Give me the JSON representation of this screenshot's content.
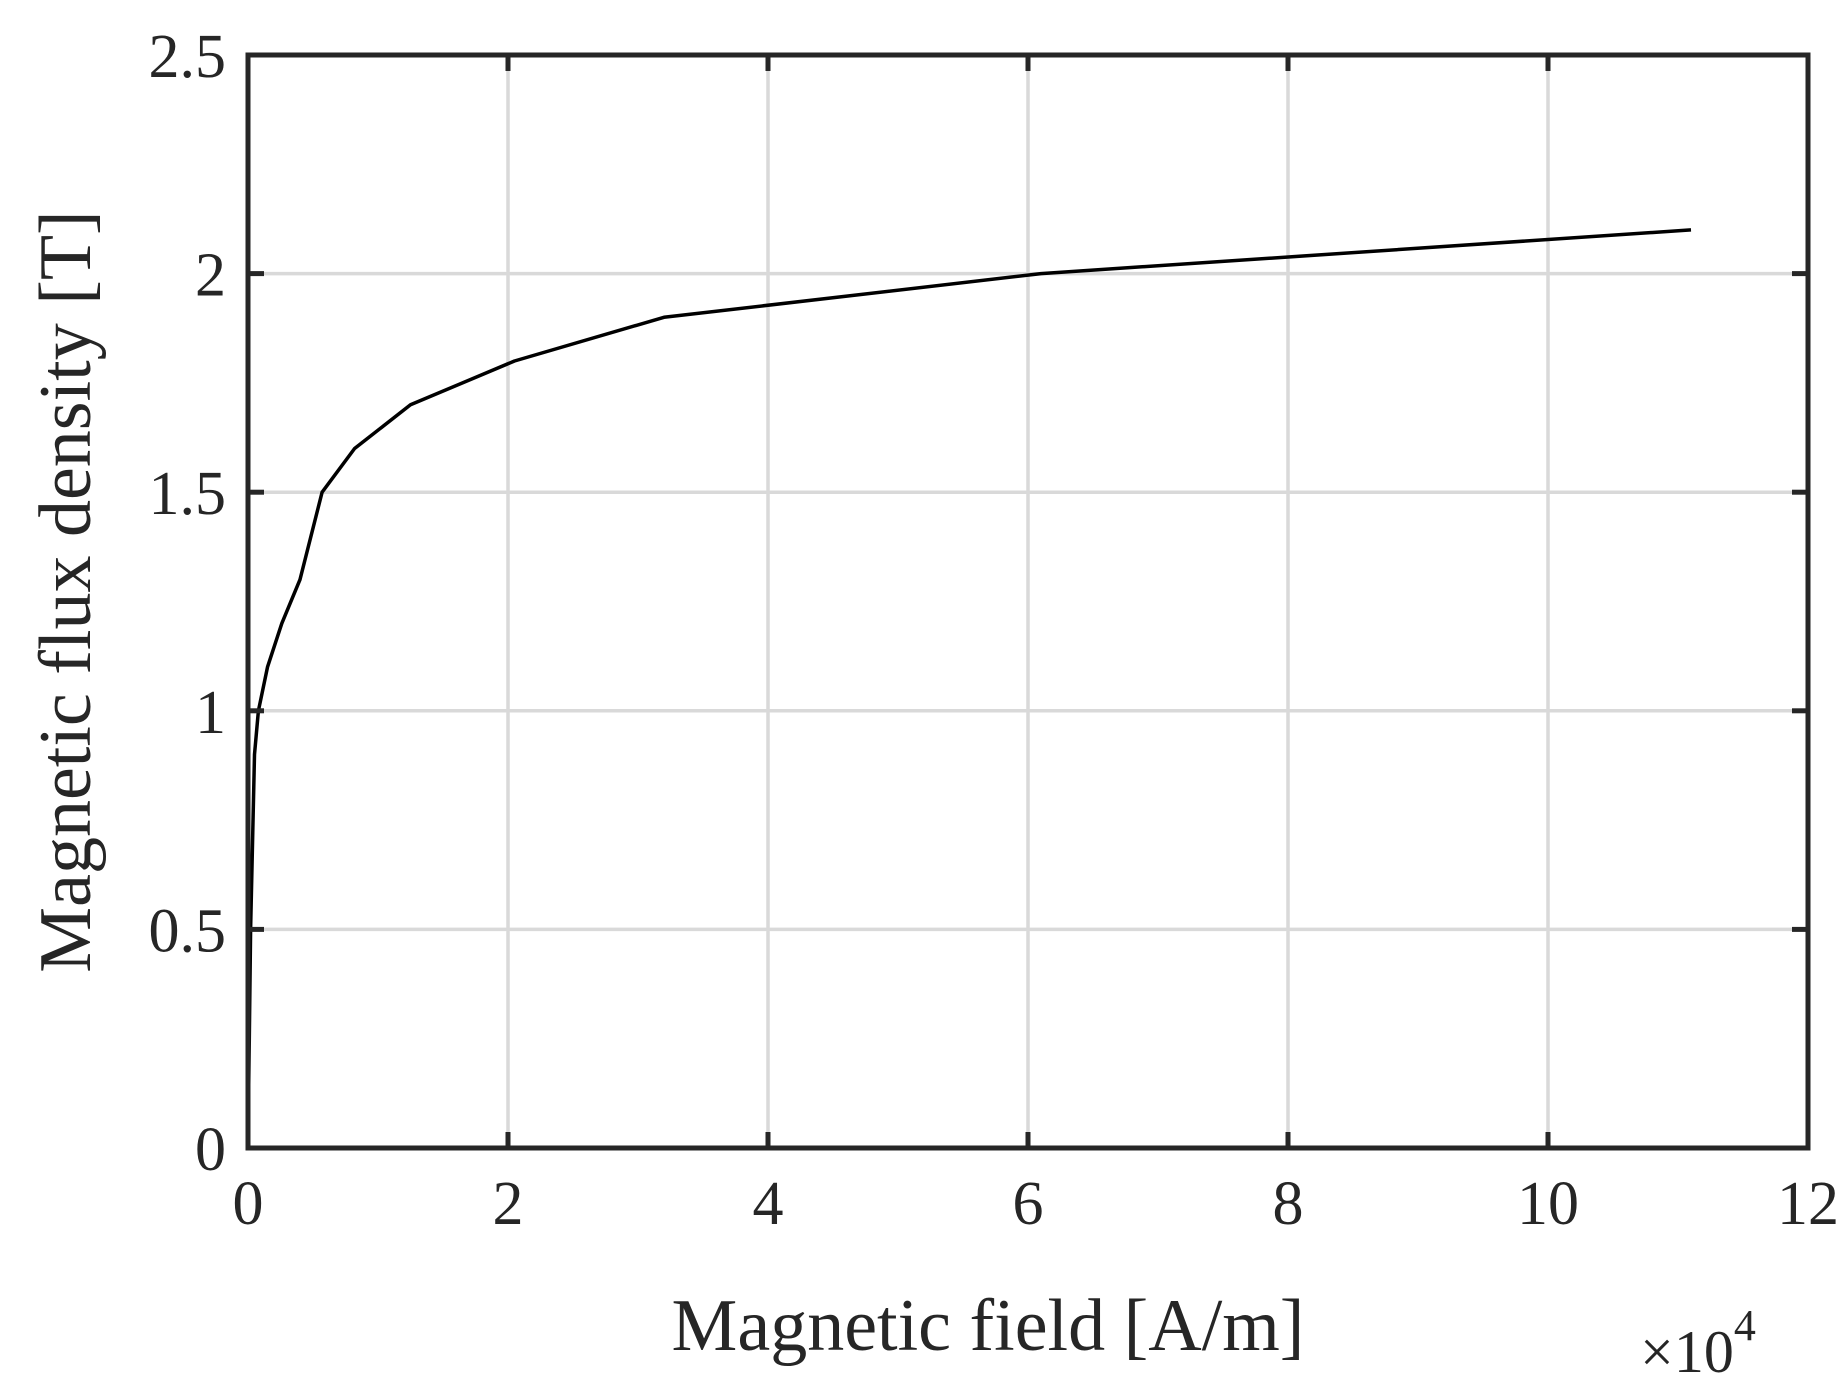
{
  "chart_data": {
    "type": "line",
    "title": "",
    "xlabel": "Magnetic field [A/m]",
    "ylabel": "Magnetic flux density [T]",
    "x_exponent_label": "×10",
    "x_exponent_power": "4",
    "x_scale_factor": 10000,
    "xlim": [
      0,
      120000
    ],
    "ylim": [
      0,
      2.5
    ],
    "xticks": [
      0,
      20000,
      40000,
      60000,
      80000,
      100000,
      120000
    ],
    "xtick_labels": [
      "0",
      "2",
      "4",
      "6",
      "8",
      "10",
      "12"
    ],
    "yticks": [
      0,
      0.5,
      1,
      1.5,
      2,
      2.5
    ],
    "ytick_labels": [
      "0",
      "0.5",
      "1",
      "1.5",
      "2",
      "2.5"
    ],
    "grid": true,
    "series": [
      {
        "color": "#000000",
        "x": [
          0,
          200,
          500,
          800,
          1500,
          2600,
          4000,
          5700,
          8200,
          12500,
          20500,
          32000,
          61000,
          111000
        ],
        "y": [
          0,
          0.5,
          0.9,
          1.0,
          1.1,
          1.2,
          1.3,
          1.5,
          1.6,
          1.7,
          1.8,
          1.9,
          2.0,
          2.1
        ]
      }
    ]
  }
}
